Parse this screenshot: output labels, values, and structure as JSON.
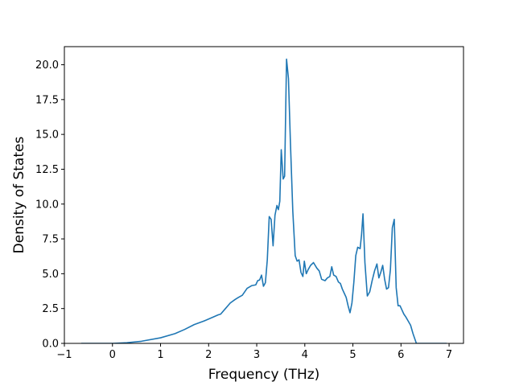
{
  "chart_data": {
    "type": "line",
    "title": "",
    "xlabel": "Frequency (THz)",
    "ylabel": "Density of States",
    "xlim": [
      -1.0,
      7.3
    ],
    "ylim": [
      0.0,
      21.3
    ],
    "xticks": [
      -1,
      0,
      1,
      2,
      3,
      4,
      5,
      6,
      7
    ],
    "xtick_labels": [
      "−1",
      "0",
      "1",
      "2",
      "3",
      "4",
      "5",
      "6",
      "7"
    ],
    "yticks": [
      0.0,
      2.5,
      5.0,
      7.5,
      10.0,
      12.5,
      15.0,
      17.5,
      20.0
    ],
    "ytick_labels": [
      "0.0",
      "2.5",
      "5.0",
      "7.5",
      "10.0",
      "12.5",
      "15.0",
      "17.5",
      "20.0"
    ],
    "grid": false,
    "line_color": "#1f77b4",
    "series": [
      {
        "x": [
          -0.65,
          0.0,
          0.3,
          0.6,
          1.0,
          1.3,
          1.5,
          1.7,
          1.9,
          2.1,
          2.2,
          2.25,
          2.35,
          2.45,
          2.55,
          2.62,
          2.7,
          2.8,
          2.9,
          2.98,
          3.02,
          3.06,
          3.1,
          3.14,
          3.18,
          3.22,
          3.26,
          3.3,
          3.34,
          3.38,
          3.42,
          3.45,
          3.48,
          3.51,
          3.55,
          3.58,
          3.62,
          3.66,
          3.7,
          3.75,
          3.8,
          3.84,
          3.88,
          3.92,
          3.96,
          3.99,
          4.03,
          4.07,
          4.12,
          4.18,
          4.25,
          4.3,
          4.35,
          4.42,
          4.47,
          4.52,
          4.56,
          4.6,
          4.65,
          4.7,
          4.74,
          4.78,
          4.82,
          4.86,
          4.9,
          4.94,
          4.98,
          5.02,
          5.06,
          5.1,
          5.15,
          5.18,
          5.21,
          5.25,
          5.3,
          5.35,
          5.4,
          5.45,
          5.5,
          5.54,
          5.58,
          5.62,
          5.66,
          5.7,
          5.74,
          5.78,
          5.82,
          5.86,
          5.9,
          5.94,
          5.98,
          6.02,
          6.06,
          6.1,
          6.15,
          6.2,
          6.25,
          6.32,
          6.5,
          6.7,
          6.95
        ],
        "y": [
          0.0,
          0.0,
          0.05,
          0.15,
          0.4,
          0.7,
          1.0,
          1.35,
          1.6,
          1.9,
          2.05,
          2.1,
          2.5,
          2.9,
          3.15,
          3.3,
          3.45,
          3.95,
          4.15,
          4.2,
          4.5,
          4.55,
          4.9,
          4.1,
          4.35,
          6.0,
          9.1,
          8.9,
          7.0,
          9.2,
          9.9,
          9.6,
          10.2,
          13.9,
          11.8,
          12.0,
          20.4,
          19.0,
          14.5,
          9.5,
          6.3,
          5.9,
          6.0,
          5.1,
          4.8,
          5.9,
          5.0,
          5.3,
          5.6,
          5.8,
          5.4,
          5.2,
          4.6,
          4.5,
          4.7,
          4.8,
          5.5,
          4.9,
          4.8,
          4.4,
          4.3,
          3.9,
          3.6,
          3.3,
          2.7,
          2.2,
          2.9,
          4.4,
          6.3,
          6.9,
          6.8,
          7.8,
          9.3,
          5.8,
          3.4,
          3.7,
          4.5,
          5.2,
          5.7,
          4.7,
          5.1,
          5.6,
          4.6,
          3.9,
          4.0,
          5.3,
          8.3,
          8.9,
          4.0,
          2.7,
          2.7,
          2.4,
          2.1,
          1.9,
          1.6,
          1.3,
          0.7,
          0.0,
          0.0,
          0.0,
          0.0
        ]
      }
    ]
  }
}
